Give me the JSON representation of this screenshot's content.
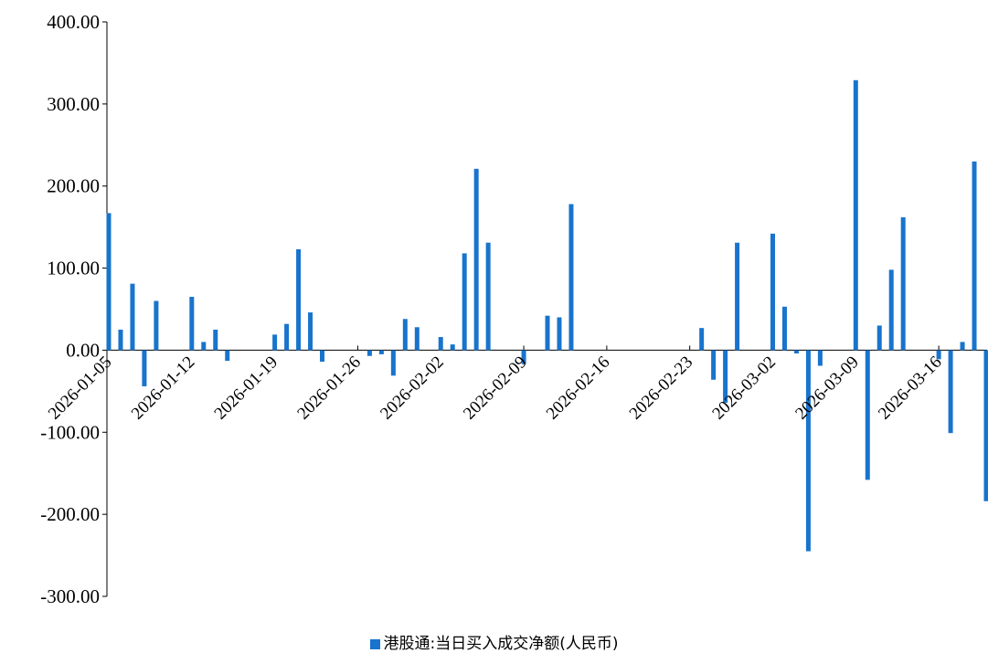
{
  "chart_data": {
    "type": "bar",
    "title": "",
    "xlabel": "",
    "ylabel": "",
    "ylim": [
      -300,
      400
    ],
    "yticks": [
      "400.00",
      "300.00",
      "200.00",
      "100.00",
      "0.00",
      "-100.00",
      "-200.00",
      "-300.00"
    ],
    "x_tick_labels": [
      "2026-01-05",
      "2026-01-12",
      "2026-01-19",
      "2026-01-26",
      "2026-02-02",
      "2026-02-09",
      "2026-02-16",
      "2026-02-23",
      "2026-03-02",
      "2026-03-09",
      "2026-03-16"
    ],
    "x_start": "2026-01-05",
    "x_end": "2026-03-20",
    "grid": false,
    "legend_position": "bottom-center",
    "series": [
      {
        "name": "港股通:当日买入成交净额(人民币)",
        "color": "#1874CD",
        "points": [
          {
            "date": "2026-01-05",
            "value": 167
          },
          {
            "date": "2026-01-06",
            "value": 25
          },
          {
            "date": "2026-01-07",
            "value": 81
          },
          {
            "date": "2026-01-08",
            "value": -44
          },
          {
            "date": "2026-01-09",
            "value": 60
          },
          {
            "date": "2026-01-12",
            "value": 65
          },
          {
            "date": "2026-01-13",
            "value": 10
          },
          {
            "date": "2026-01-14",
            "value": 25
          },
          {
            "date": "2026-01-15",
            "value": -13
          },
          {
            "date": "2026-01-19",
            "value": 19
          },
          {
            "date": "2026-01-20",
            "value": 32
          },
          {
            "date": "2026-01-21",
            "value": 123
          },
          {
            "date": "2026-01-22",
            "value": 46
          },
          {
            "date": "2026-01-23",
            "value": -14
          },
          {
            "date": "2026-01-27",
            "value": -7
          },
          {
            "date": "2026-01-28",
            "value": -5
          },
          {
            "date": "2026-01-29",
            "value": -31
          },
          {
            "date": "2026-01-30",
            "value": 38
          },
          {
            "date": "2026-01-31",
            "value": 28
          },
          {
            "date": "2026-02-02",
            "value": 16
          },
          {
            "date": "2026-02-03",
            "value": 7
          },
          {
            "date": "2026-02-04",
            "value": 118
          },
          {
            "date": "2026-02-05",
            "value": 221
          },
          {
            "date": "2026-02-06",
            "value": 131
          },
          {
            "date": "2026-02-09",
            "value": -17
          },
          {
            "date": "2026-02-11",
            "value": 42
          },
          {
            "date": "2026-02-12",
            "value": 40
          },
          {
            "date": "2026-02-13",
            "value": 178
          },
          {
            "date": "2026-02-24",
            "value": 27
          },
          {
            "date": "2026-02-25",
            "value": -36
          },
          {
            "date": "2026-02-26",
            "value": -64
          },
          {
            "date": "2026-02-27",
            "value": 131
          },
          {
            "date": "2026-03-02",
            "value": 142
          },
          {
            "date": "2026-03-03",
            "value": 53
          },
          {
            "date": "2026-03-04",
            "value": -4
          },
          {
            "date": "2026-03-05",
            "value": -245
          },
          {
            "date": "2026-03-06",
            "value": -19
          },
          {
            "date": "2026-03-09",
            "value": 329
          },
          {
            "date": "2026-03-10",
            "value": -158
          },
          {
            "date": "2026-03-11",
            "value": 30
          },
          {
            "date": "2026-03-12",
            "value": 98
          },
          {
            "date": "2026-03-13",
            "value": 162
          },
          {
            "date": "2026-03-16",
            "value": -11
          },
          {
            "date": "2026-03-17",
            "value": -101
          },
          {
            "date": "2026-03-18",
            "value": 10
          },
          {
            "date": "2026-03-19",
            "value": 230
          },
          {
            "date": "2026-03-20",
            "value": -184
          }
        ]
      }
    ]
  }
}
